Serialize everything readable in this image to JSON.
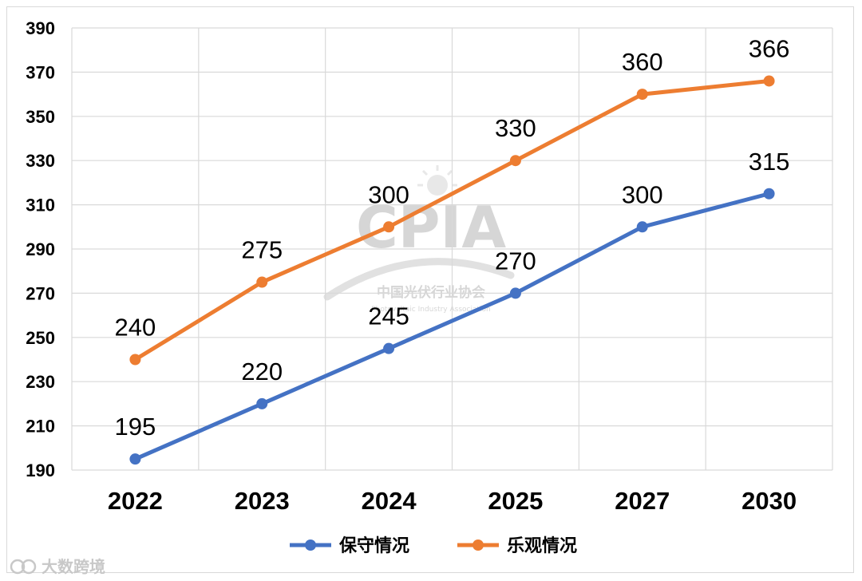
{
  "chart_data": {
    "type": "line",
    "categories": [
      "2022",
      "2023",
      "2024",
      "2025",
      "2027",
      "2030"
    ],
    "series": [
      {
        "name": "保守情况",
        "color": "#4472c4",
        "values": [
          195,
          220,
          245,
          270,
          300,
          315
        ]
      },
      {
        "name": "乐观情况",
        "color": "#ed7d31",
        "values": [
          240,
          275,
          300,
          330,
          360,
          366
        ]
      }
    ],
    "ylim": [
      190,
      390
    ],
    "yticks": [
      190,
      210,
      230,
      250,
      270,
      290,
      310,
      330,
      350,
      370,
      390
    ],
    "grid": true,
    "legend_position": "bottom",
    "title": "",
    "xlabel": "",
    "ylabel": ""
  },
  "watermark": {
    "logo": "CPIA",
    "name": "中国光伏行业协会",
    "sub": "Photovoltaic Industry Association"
  },
  "footer": {
    "brand": "大数跨境"
  }
}
